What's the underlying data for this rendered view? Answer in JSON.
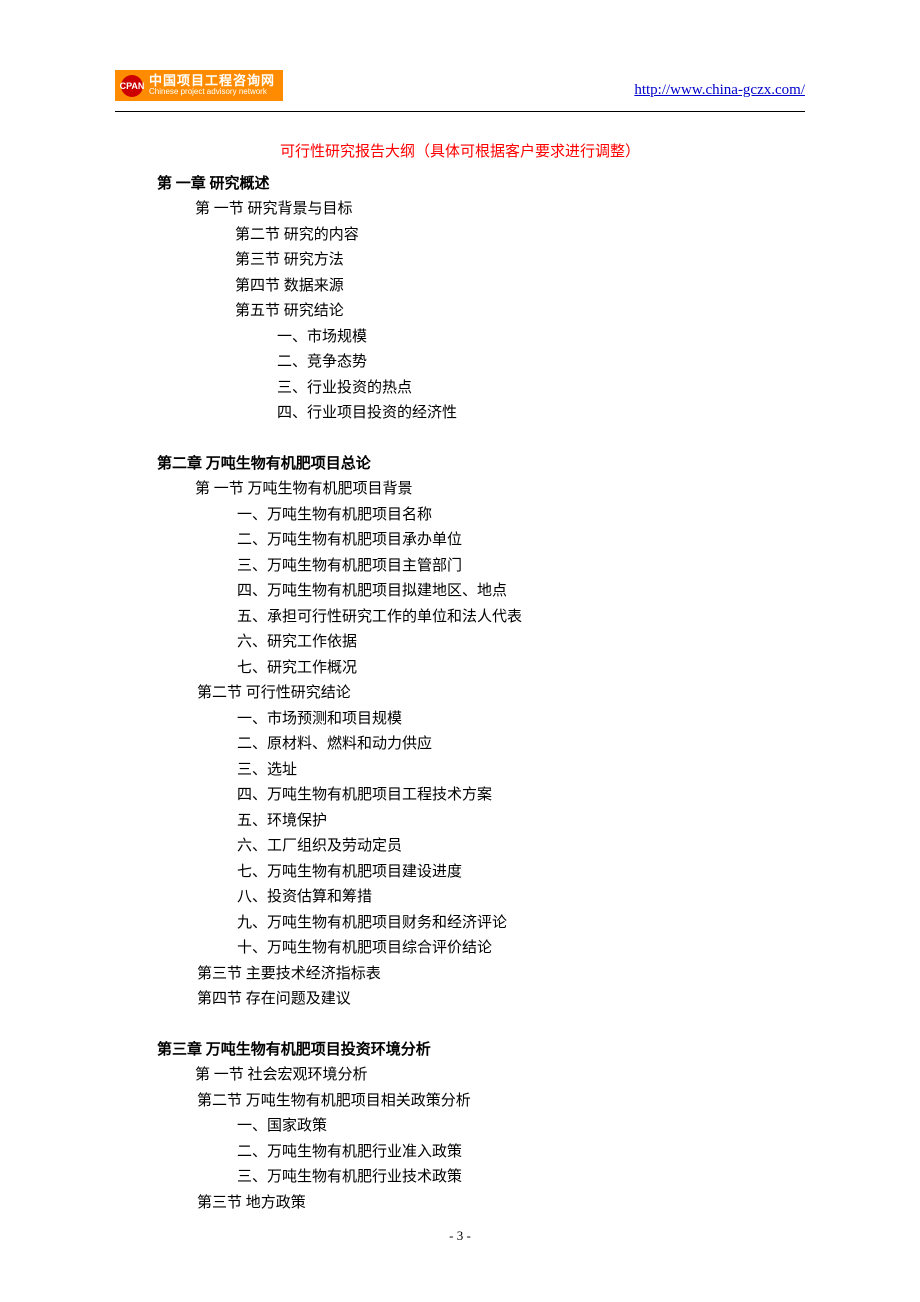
{
  "header": {
    "logo_badge": "CPAN",
    "logo_zh": "中国项目工程咨询网",
    "logo_en": "Chinese project advisory network",
    "url": "http://www.china-gczx.com/"
  },
  "title": "可行性研究报告大纲（具体可根据客户要求进行调整）",
  "ch1": {
    "title": "第 一章   研究概述",
    "s1": "第 一节  研究背景与目标",
    "s2": "第二节  研究的内容",
    "s3": "第三节  研究方法",
    "s4": "第四节  数据来源",
    "s5": "第五节  研究结论",
    "i1": "一、市场规模",
    "i2": "二、竞争态势",
    "i3": "三、行业投资的热点",
    "i4": "四、行业项目投资的经济性"
  },
  "ch2": {
    "title": "第二章  万吨生物有机肥项目总论",
    "s1": "第 一节  万吨生物有机肥项目背景",
    "s1_i1": "一、万吨生物有机肥项目名称",
    "s1_i2": "二、万吨生物有机肥项目承办单位",
    "s1_i3": "三、万吨生物有机肥项目主管部门",
    "s1_i4": "四、万吨生物有机肥项目拟建地区、地点",
    "s1_i5": "五、承担可行性研究工作的单位和法人代表",
    "s1_i6": "六、研究工作依据",
    "s1_i7": "七、研究工作概况",
    "s2": "第二节    可行性研究结论",
    "s2_i1": "一、市场预测和项目规模",
    "s2_i2": "二、原材料、燃料和动力供应",
    "s2_i3": "三、选址",
    "s2_i4": "四、万吨生物有机肥项目工程技术方案",
    "s2_i5": "五、环境保护",
    "s2_i6": "六、工厂组织及劳动定员",
    "s2_i7": "七、万吨生物有机肥项目建设进度",
    "s2_i8": "八、投资估算和筹措",
    "s2_i9": "九、万吨生物有机肥项目财务和经济评论",
    "s2_i10": "十、万吨生物有机肥项目综合评价结论",
    "s3": "第三节    主要技术经济指标表",
    "s4": "第四节    存在问题及建议"
  },
  "ch3": {
    "title": "第三章  万吨生物有机肥项目投资环境分析",
    "s1": "第 一节    社会宏观环境分析",
    "s2": "第二节  万吨生物有机肥项目相关政策分析",
    "s2_i1": "一、国家政策",
    "s2_i2": "二、万吨生物有机肥行业准入政策",
    "s2_i3": "三、万吨生物有机肥行业技术政策",
    "s3": "第三节    地方政策"
  },
  "page_number": "- 3 -"
}
